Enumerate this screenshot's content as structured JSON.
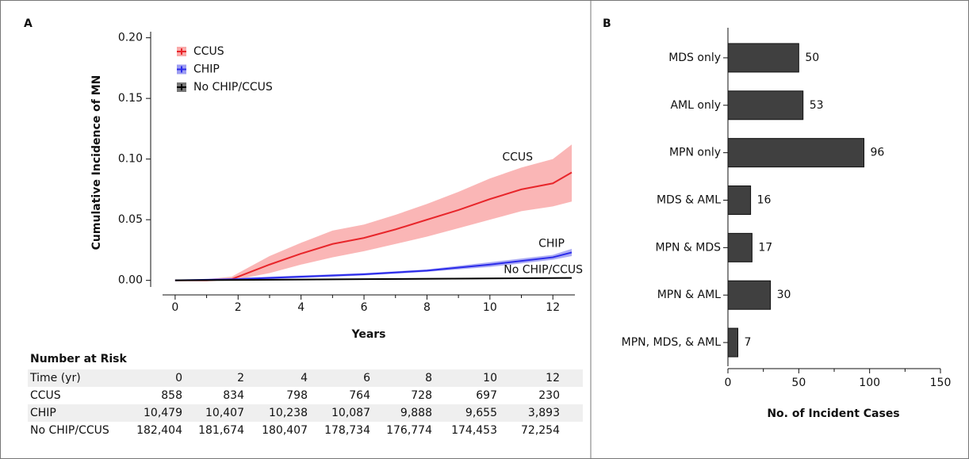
{
  "chart_data": [
    {
      "type": "line",
      "panel": "A",
      "ylabel": "Cumulative Incidence of MN",
      "xlabel": "Years",
      "xlim": [
        -0.4,
        12.7
      ],
      "ylim": [
        -0.012,
        0.205
      ],
      "xticks": [
        0,
        2,
        4,
        6,
        8,
        10,
        12
      ],
      "xminorticks": [
        1,
        3,
        5,
        7,
        9,
        11
      ],
      "yticks": [
        {
          "value": 0,
          "label": "0.00"
        },
        {
          "value": 0.05,
          "label": "0.05"
        },
        {
          "value": 0.1,
          "label": "0.10"
        },
        {
          "value": 0.15,
          "label": "0.15"
        },
        {
          "value": 0.2,
          "label": "0.20"
        }
      ],
      "series": [
        {
          "name": "CCUS",
          "color": "#e8262b",
          "band_color": "#f9a9a9",
          "x": [
            0,
            1,
            1.8,
            2,
            3,
            4,
            5,
            6,
            7,
            8,
            9,
            10,
            11,
            12,
            12.6
          ],
          "values": [
            0,
            0,
            0.001,
            0.003,
            0.013,
            0.022,
            0.03,
            0.035,
            0.042,
            0.05,
            0.058,
            0.067,
            0.075,
            0.08,
            0.089
          ],
          "ci_lower": [
            0,
            0,
            0,
            0.001,
            0.006,
            0.013,
            0.019,
            0.024,
            0.03,
            0.036,
            0.043,
            0.05,
            0.057,
            0.061,
            0.065
          ],
          "ci_upper": [
            0,
            0.001,
            0.003,
            0.006,
            0.02,
            0.031,
            0.041,
            0.046,
            0.054,
            0.063,
            0.073,
            0.084,
            0.093,
            0.1,
            0.112
          ]
        },
        {
          "name": "CHIP",
          "color": "#2b2bea",
          "band_color": "#9d9df2",
          "x": [
            0,
            2,
            4,
            6,
            8,
            10,
            12,
            12.6
          ],
          "values": [
            0,
            0.001,
            0.003,
            0.005,
            0.008,
            0.013,
            0.019,
            0.023
          ],
          "ci_lower": [
            0,
            0,
            0.002,
            0.004,
            0.007,
            0.011,
            0.017,
            0.02
          ],
          "ci_upper": [
            0,
            0.002,
            0.004,
            0.006,
            0.009,
            0.015,
            0.021,
            0.026
          ]
        },
        {
          "name": "No CHIP/CCUS",
          "color": "#000000",
          "band_color": "#777777",
          "x": [
            0,
            6,
            12.6
          ],
          "values": [
            0,
            0.001,
            0.002
          ],
          "ci_lower": [
            0,
            0.0005,
            0.0015
          ],
          "ci_upper": [
            0,
            0.0015,
            0.0025
          ]
        }
      ],
      "curve_labels": [
        "CCUS",
        "CHIP",
        "No CHIP/CCUS"
      ]
    },
    {
      "type": "barh",
      "panel": "B",
      "xlabel": "No. of Incident Cases",
      "color": "#404040",
      "categories": [
        "MDS only",
        "AML only",
        "MPN only",
        "MDS & AML",
        "MPN & MDS",
        "MPN & AML",
        "MPN, MDS, & AML"
      ],
      "values": [
        50,
        53,
        96,
        16,
        17,
        30,
        7
      ],
      "xlim": [
        0,
        150
      ],
      "xticks": [
        0,
        50,
        100,
        150
      ],
      "xminorticks": [
        25,
        75,
        125
      ]
    }
  ],
  "risk_table": {
    "title": "Number at Risk",
    "header": "Time (yr)",
    "times": [
      0,
      2,
      4,
      6,
      8,
      10,
      12
    ],
    "rows": [
      {
        "name": "CCUS",
        "values": [
          "858",
          "834",
          "798",
          "764",
          "728",
          "697",
          "230"
        ]
      },
      {
        "name": "CHIP",
        "values": [
          "10,479",
          "10,407",
          "10,238",
          "10,087",
          "9,888",
          "9,655",
          "3,893"
        ]
      },
      {
        "name": "No CHIP/CCUS",
        "values": [
          "182,404",
          "181,674",
          "180,407",
          "178,734",
          "176,774",
          "174,453",
          "72,254"
        ]
      }
    ]
  }
}
